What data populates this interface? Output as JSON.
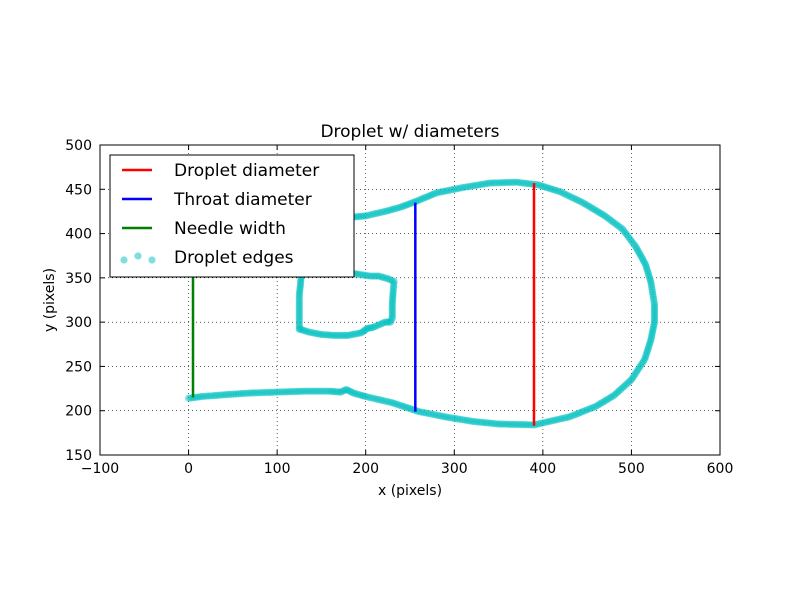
{
  "chart_data": {
    "type": "scatter",
    "title": "Droplet w/ diameters",
    "xlabel": "x (pixels)",
    "ylabel": "y (pixels)",
    "xlim": [
      -100,
      600
    ],
    "ylim": [
      150,
      500
    ],
    "xticks": [
      -100,
      0,
      100,
      200,
      300,
      400,
      500,
      600
    ],
    "xtick_labels": [
      "−100",
      "0",
      "100",
      "200",
      "300",
      "400",
      "500",
      "600"
    ],
    "yticks": [
      150,
      200,
      250,
      300,
      350,
      400,
      450,
      500
    ],
    "ytick_labels": [
      "150",
      "200",
      "250",
      "300",
      "350",
      "400",
      "450",
      "500"
    ],
    "grid": true,
    "legend_position": "top-left",
    "lines": [
      {
        "name": "Droplet diameter",
        "color": "#ff0000",
        "x": [
          390,
          390
        ],
        "y": [
          183,
          457
        ]
      },
      {
        "name": "Throat diameter",
        "color": "#0000ff",
        "x": [
          256,
          256
        ],
        "y": [
          199,
          435
        ]
      },
      {
        "name": "Needle width",
        "color": "#008000",
        "x": [
          5,
          5
        ],
        "y": [
          215,
          395
        ]
      }
    ],
    "scatter": {
      "name": "Droplet edges",
      "color": "#00bfbf",
      "outer_boundary": [
        [
          0,
          214
        ],
        [
          15,
          216
        ],
        [
          40,
          218
        ],
        [
          70,
          220
        ],
        [
          100,
          221
        ],
        [
          130,
          222
        ],
        [
          160,
          222
        ],
        [
          172,
          221
        ],
        [
          178,
          224
        ],
        [
          186,
          220
        ],
        [
          200,
          216
        ],
        [
          230,
          209
        ],
        [
          260,
          199
        ],
        [
          290,
          193
        ],
        [
          320,
          188
        ],
        [
          350,
          185
        ],
        [
          390,
          184
        ],
        [
          430,
          193
        ],
        [
          460,
          205
        ],
        [
          480,
          217
        ],
        [
          500,
          235
        ],
        [
          515,
          258
        ],
        [
          522,
          280
        ],
        [
          526,
          300
        ],
        [
          526,
          320
        ],
        [
          522,
          345
        ],
        [
          516,
          365
        ],
        [
          505,
          385
        ],
        [
          490,
          405
        ],
        [
          470,
          420
        ],
        [
          445,
          435
        ],
        [
          420,
          447
        ],
        [
          395,
          455
        ],
        [
          370,
          458
        ],
        [
          340,
          457
        ],
        [
          310,
          452
        ],
        [
          280,
          446
        ],
        [
          256,
          436
        ],
        [
          240,
          430
        ],
        [
          222,
          425
        ],
        [
          200,
          420
        ],
        [
          180,
          418
        ],
        [
          170,
          417
        ],
        [
          155,
          420
        ],
        [
          140,
          420
        ],
        [
          125,
          419
        ]
      ],
      "inner_boundary": [
        [
          125,
          292
        ],
        [
          125,
          330
        ],
        [
          127,
          350
        ],
        [
          135,
          365
        ],
        [
          145,
          368
        ],
        [
          165,
          364
        ],
        [
          178,
          356
        ],
        [
          192,
          354
        ],
        [
          205,
          352
        ],
        [
          215,
          352
        ],
        [
          225,
          349
        ],
        [
          232,
          346
        ],
        [
          231,
          335
        ],
        [
          230,
          320
        ],
        [
          230,
          305
        ],
        [
          228,
          300
        ],
        [
          222,
          300
        ],
        [
          215,
          297
        ],
        [
          208,
          294
        ],
        [
          202,
          293
        ],
        [
          195,
          288
        ],
        [
          180,
          285
        ],
        [
          165,
          285
        ],
        [
          150,
          286
        ],
        [
          135,
          289
        ],
        [
          126,
          292
        ]
      ]
    }
  }
}
